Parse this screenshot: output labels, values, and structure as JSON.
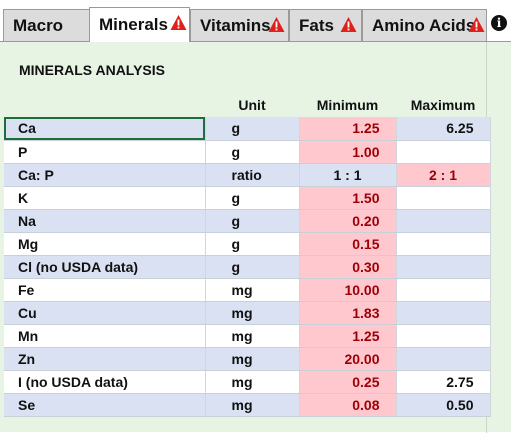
{
  "tabs": [
    {
      "label": "Macro",
      "warning": false,
      "active": false
    },
    {
      "label": "Minerals",
      "warning": true,
      "active": true
    },
    {
      "label": "Vitamins",
      "warning": true,
      "active": false
    },
    {
      "label": "Fats",
      "warning": true,
      "active": false
    },
    {
      "label": "Amino Acids",
      "warning": true,
      "active": false
    }
  ],
  "info_icon": "info-circle-icon",
  "sheet": {
    "title": "MINERALS ANALYSIS",
    "headers": {
      "unit": "Unit",
      "minimum": "Minimum",
      "maximum": "Maximum"
    },
    "rows": [
      {
        "name": "Ca",
        "unit": "g",
        "minimum": "1.25",
        "maximum": "6.25",
        "min_flag": true,
        "max_flag": false
      },
      {
        "name": "P",
        "unit": "g",
        "minimum": "1.00",
        "maximum": "",
        "min_flag": true,
        "max_flag": false
      },
      {
        "name": "Ca: P",
        "unit": "ratio",
        "minimum": "1 : 1",
        "maximum": "2 : 1",
        "min_flag": false,
        "max_flag": true
      },
      {
        "name": "K",
        "unit": "g",
        "minimum": "1.50",
        "maximum": "",
        "min_flag": true,
        "max_flag": false
      },
      {
        "name": "Na",
        "unit": "g",
        "minimum": "0.20",
        "maximum": "",
        "min_flag": true,
        "max_flag": false
      },
      {
        "name": "Mg",
        "unit": "g",
        "minimum": "0.15",
        "maximum": "",
        "min_flag": true,
        "max_flag": false
      },
      {
        "name": "Cl (no USDA data)",
        "unit": "g",
        "minimum": "0.30",
        "maximum": "",
        "min_flag": true,
        "max_flag": false
      },
      {
        "name": "Fe",
        "unit": "mg",
        "minimum": "10.00",
        "maximum": "",
        "min_flag": true,
        "max_flag": false
      },
      {
        "name": "Cu",
        "unit": "mg",
        "minimum": "1.83",
        "maximum": "",
        "min_flag": true,
        "max_flag": false
      },
      {
        "name": "Mn",
        "unit": "mg",
        "minimum": "1.25",
        "maximum": "",
        "min_flag": true,
        "max_flag": false
      },
      {
        "name": "Zn",
        "unit": "mg",
        "minimum": "20.00",
        "maximum": "",
        "min_flag": true,
        "max_flag": false
      },
      {
        "name": "I (no USDA data)",
        "unit": "mg",
        "minimum": "0.25",
        "maximum": "2.75",
        "min_flag": true,
        "max_flag": false
      },
      {
        "name": "Se",
        "unit": "mg",
        "minimum": "0.08",
        "maximum": "0.50",
        "min_flag": true,
        "max_flag": false
      }
    ]
  },
  "colors": {
    "flag_fill": "#ffc7ce",
    "flag_text": "#9c0006",
    "band": "#d9e1f2",
    "sheet_bg": "#e7f4e4",
    "warning": "#e0201b"
  }
}
